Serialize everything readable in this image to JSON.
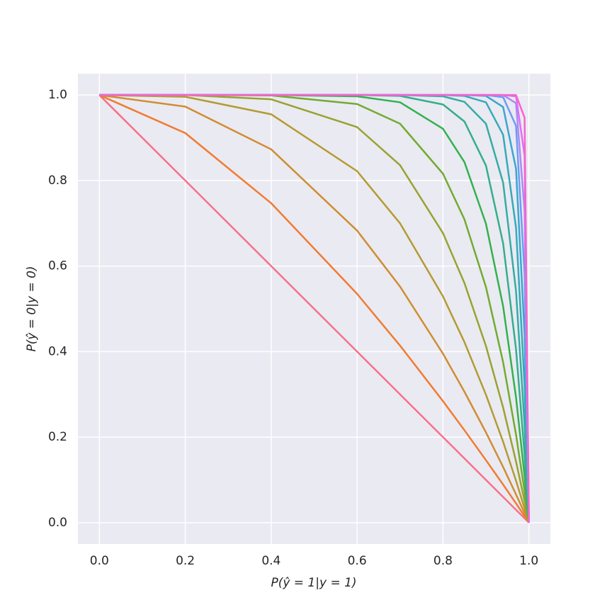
{
  "chart_data": {
    "type": "line",
    "x_label": "P(ŷ = 1|y = 1)",
    "y_label": "P(ŷ = 0|y = 0)",
    "x": [
      0,
      0.2,
      0.4,
      0.6,
      0.7,
      0.8,
      0.85,
      0.9,
      0.94,
      0.97,
      0.99,
      1
    ],
    "series": [
      {
        "color": "#f77189",
        "values": [
          1,
          0.8,
          0.6,
          0.4,
          0.3,
          0.2,
          0.15,
          0.1,
          0.06,
          0.03,
          0.01,
          0
        ]
      },
      {
        "color": "#f17b31",
        "values": [
          1,
          0.911,
          0.747,
          0.535,
          0.414,
          0.284,
          0.216,
          0.146,
          0.089,
          0.045,
          0.015,
          0
        ]
      },
      {
        "color": "#cf8d31",
        "values": [
          1,
          0.973,
          0.873,
          0.683,
          0.552,
          0.395,
          0.306,
          0.211,
          0.13,
          0.066,
          0.022,
          0
        ]
      },
      {
        "color": "#b39b31",
        "values": [
          1,
          0.996,
          0.955,
          0.822,
          0.7,
          0.529,
          0.422,
          0.299,
          0.189,
          0.098,
          0.033,
          0
        ]
      },
      {
        "color": "#99a231",
        "values": [
          1,
          1,
          0.99,
          0.925,
          0.836,
          0.677,
          0.56,
          0.413,
          0.269,
          0.143,
          0.05,
          0
        ]
      },
      {
        "color": "#72ab31",
        "values": [
          1,
          1,
          0.999,
          0.979,
          0.933,
          0.816,
          0.709,
          0.551,
          0.375,
          0.206,
          0.073,
          0
        ]
      },
      {
        "color": "#33b14d",
        "values": [
          1,
          1,
          1,
          0.997,
          0.983,
          0.921,
          0.843,
          0.699,
          0.506,
          0.293,
          0.108,
          0
        ]
      },
      {
        "color": "#34ae8b",
        "values": [
          1,
          1,
          1,
          1,
          0.998,
          0.978,
          0.938,
          0.835,
          0.653,
          0.406,
          0.158,
          0
        ]
      },
      {
        "color": "#35aca4",
        "values": [
          1,
          1,
          1,
          1,
          1,
          0.997,
          0.984,
          0.933,
          0.795,
          0.542,
          0.227,
          0
        ]
      },
      {
        "color": "#36aab8",
        "values": [
          1,
          1,
          1,
          1,
          1,
          1,
          0.998,
          0.983,
          0.907,
          0.69,
          0.32,
          0
        ]
      },
      {
        "color": "#38a7d0",
        "values": [
          1,
          1,
          1,
          1,
          1,
          1,
          1,
          0.998,
          0.972,
          0.828,
          0.44,
          0
        ]
      },
      {
        "color": "#6e9bf4",
        "values": [
          1,
          1,
          1,
          1,
          1,
          1,
          1,
          1,
          0.995,
          0.928,
          0.581,
          0
        ]
      },
      {
        "color": "#a88cf4",
        "values": [
          1,
          1,
          1,
          1,
          1,
          1,
          1,
          1,
          1,
          0.981,
          0.729,
          0
        ]
      },
      {
        "color": "#dd6ff4",
        "values": [
          1,
          1,
          1,
          1,
          1,
          1,
          1,
          1,
          1,
          0.997,
          0.859,
          0
        ]
      },
      {
        "color": "#f565cc",
        "values": [
          1,
          1,
          1,
          1,
          1,
          1,
          1,
          1,
          1,
          1,
          0.947,
          0
        ]
      }
    ],
    "xlim": [
      -0.05,
      1.05
    ],
    "ylim": [
      -0.05,
      1.05
    ],
    "xticks": [
      {
        "value": 0,
        "label": "0.0"
      },
      0.2,
      0.4,
      0.6,
      0.8,
      {
        "value": 1,
        "label": "1.0"
      }
    ],
    "yticks": [
      {
        "value": 0,
        "label": "0.0"
      },
      0.2,
      0.4,
      0.6,
      0.8,
      {
        "value": 1,
        "label": "1.0"
      }
    ],
    "grid": true
  }
}
